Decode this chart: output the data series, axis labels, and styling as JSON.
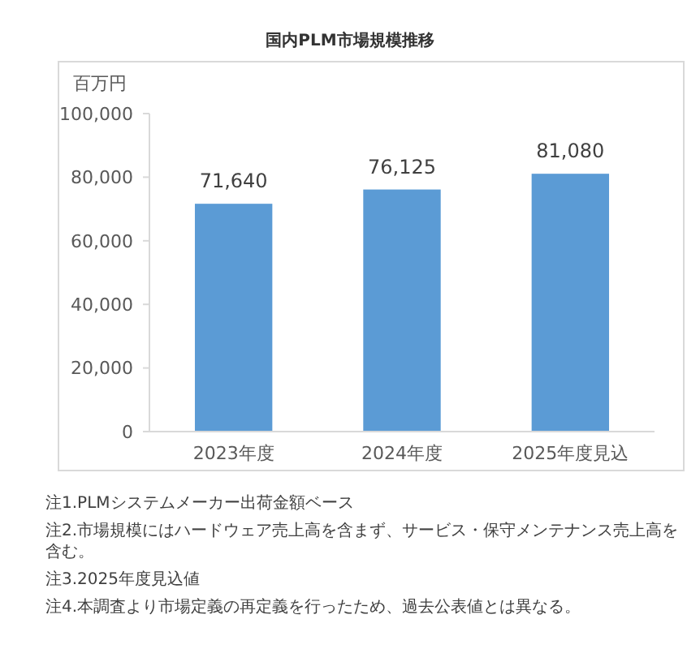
{
  "chart_data": {
    "type": "bar",
    "title": "国内PLM市場規模推移",
    "ylabel": "百万円",
    "categories": [
      "2023年度",
      "2024年度",
      "2025年度見込"
    ],
    "values": [
      71640,
      76125,
      81080
    ],
    "color": "#5b9bd5",
    "ylim": [
      0,
      100000
    ],
    "yticks": [
      {
        "value": 0,
        "label": "0"
      },
      {
        "value": 20000,
        "label": "20,000"
      },
      {
        "value": 40000,
        "label": "40,000"
      },
      {
        "value": 60000,
        "label": "60,000"
      },
      {
        "value": 80000,
        "label": "80,000"
      },
      {
        "value": 100000,
        "label": "100,000"
      }
    ],
    "value_labels": [
      "71,640",
      "76,125",
      "81,080"
    ],
    "annotations": [
      "注1.PLMシステムメーカー出荷金額ベース",
      "注2.市場規模にはハードウェア売上高を含まず、サービス・保守メンテナンス売上高を含む。",
      "注3.2025年度見込値",
      "注4.本調査より市場定義の再定義を行ったため、過去公表値とは異なる。"
    ]
  }
}
